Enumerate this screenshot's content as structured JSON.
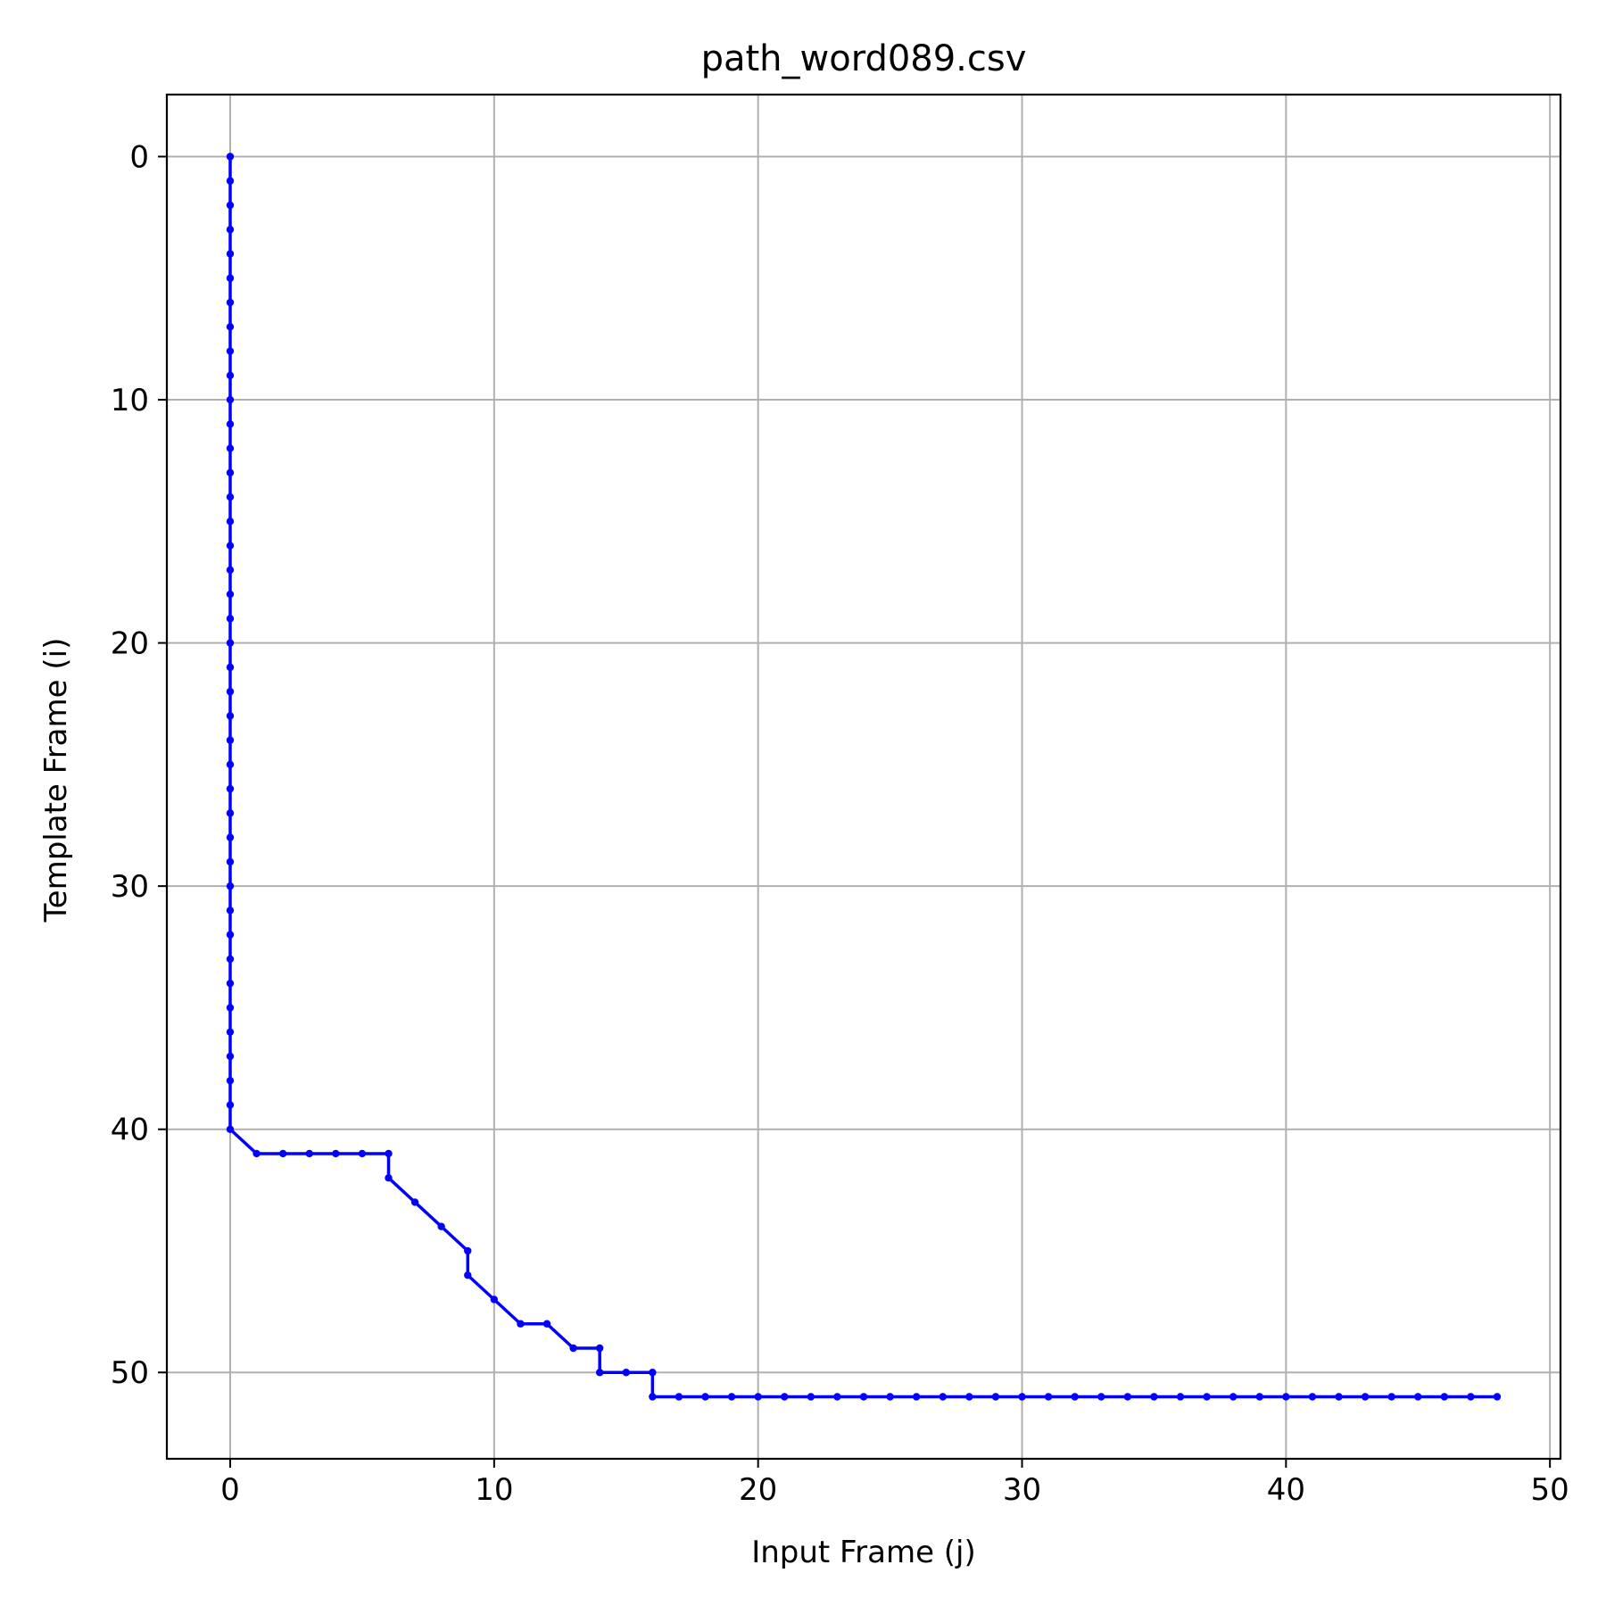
{
  "chart_data": {
    "type": "line",
    "title": "path_word089.csv",
    "xlabel": "Input Frame (j)",
    "ylabel": "Template Frame (i)",
    "xlim": [
      -2.4,
      50.4
    ],
    "ylim": [
      53.55,
      -2.55
    ],
    "y_inverted": true,
    "grid": true,
    "xticks": [
      0,
      10,
      20,
      30,
      40,
      50
    ],
    "yticks": [
      0,
      10,
      20,
      30,
      40,
      50
    ],
    "colors": {
      "series": "#0000ff",
      "grid": "#b0b0b0",
      "frame": "#000000"
    },
    "series": [
      {
        "marker": "dot",
        "x": [
          0,
          0,
          0,
          0,
          0,
          0,
          0,
          0,
          0,
          0,
          0,
          0,
          0,
          0,
          0,
          0,
          0,
          0,
          0,
          0,
          0,
          0,
          0,
          0,
          0,
          0,
          0,
          0,
          0,
          0,
          0,
          0,
          0,
          0,
          0,
          0,
          0,
          0,
          0,
          0,
          0,
          1,
          2,
          3,
          4,
          5,
          6,
          6,
          7,
          8,
          9,
          9,
          10,
          11,
          12,
          13,
          14,
          14,
          15,
          16,
          16,
          17,
          18,
          19,
          20,
          21,
          22,
          23,
          24,
          25,
          26,
          27,
          28,
          29,
          30,
          31,
          32,
          33,
          34,
          35,
          36,
          37,
          38,
          39,
          40,
          41,
          42,
          43,
          44,
          45,
          46,
          47,
          48
        ],
        "y": [
          0,
          1,
          2,
          3,
          4,
          5,
          6,
          7,
          8,
          9,
          10,
          11,
          12,
          13,
          14,
          15,
          16,
          17,
          18,
          19,
          20,
          21,
          22,
          23,
          24,
          25,
          26,
          27,
          28,
          29,
          30,
          31,
          32,
          33,
          34,
          35,
          36,
          37,
          38,
          39,
          40,
          41,
          41,
          41,
          41,
          41,
          41,
          42,
          43,
          44,
          45,
          46,
          47,
          48,
          48,
          49,
          49,
          50,
          50,
          50,
          51,
          51,
          51,
          51,
          51,
          51,
          51,
          51,
          51,
          51,
          51,
          51,
          51,
          51,
          51,
          51,
          51,
          51,
          51,
          51,
          51,
          51,
          51,
          51,
          51,
          51,
          51,
          51,
          51,
          51,
          51,
          51,
          51
        ]
      }
    ]
  }
}
